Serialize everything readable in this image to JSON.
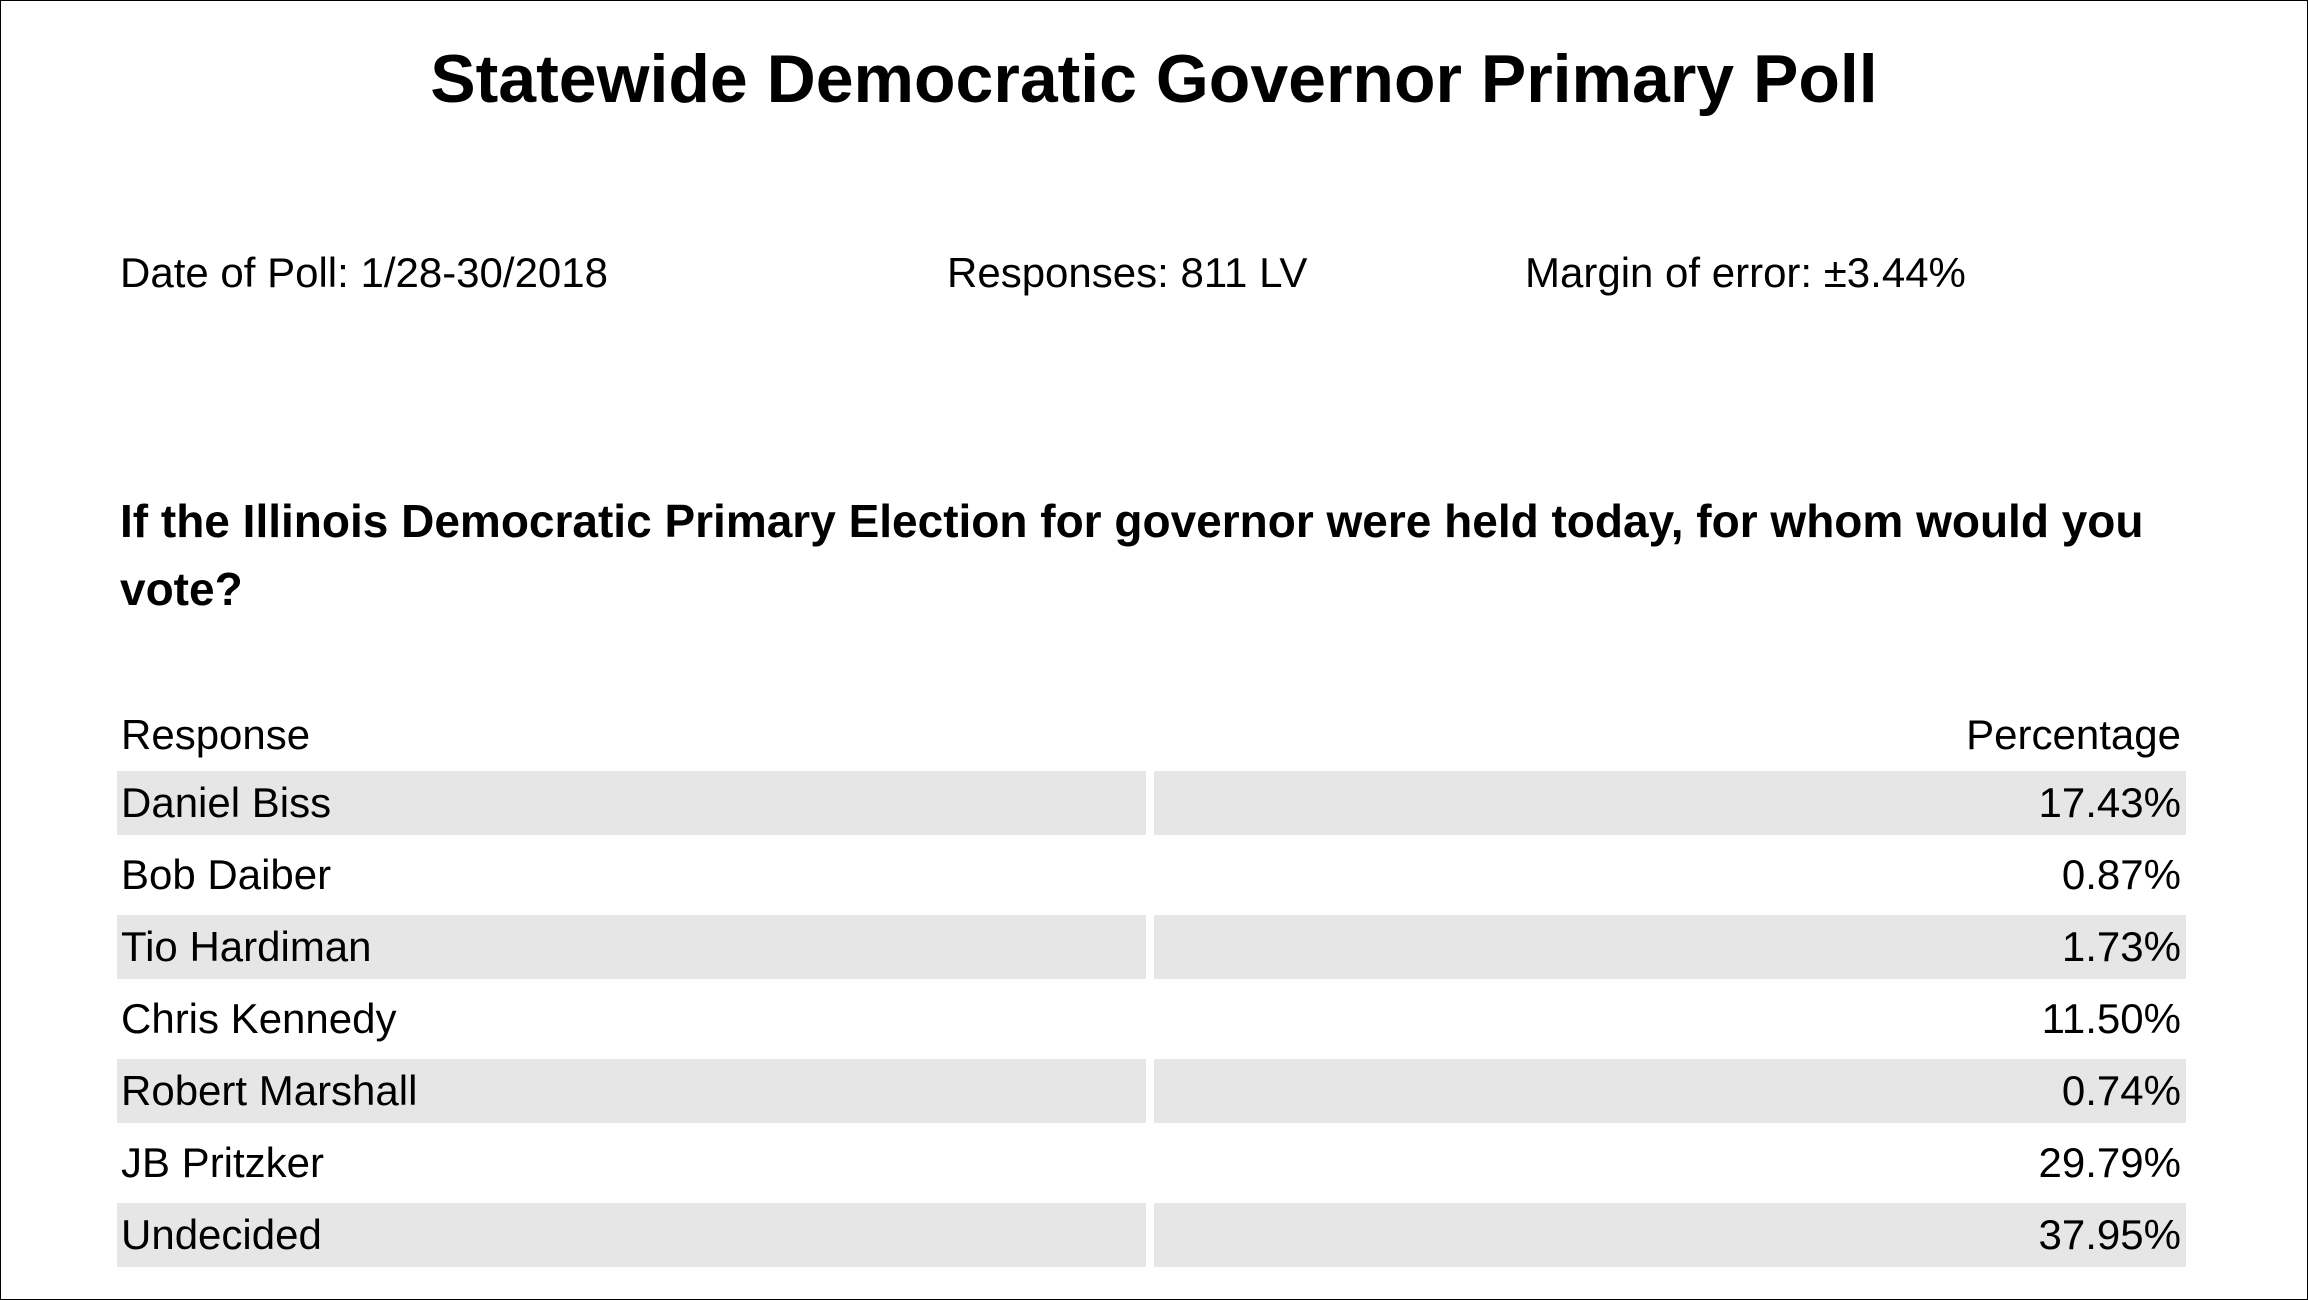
{
  "title": "Statewide Democratic Governor Primary Poll",
  "meta": {
    "date": "Date of Poll: 1/28-30/2018",
    "responses": "Responses: 811 LV",
    "margin_of_error": "Margin of error: ±3.44%"
  },
  "question": "If the Illinois Democratic Primary Election for governor were held today, for whom would you vote?",
  "table": {
    "columns": [
      "Response",
      "Percentage"
    ],
    "shaded_color": "#e6e6e6",
    "rows": [
      {
        "response": "Daniel Biss",
        "percentage": "17.43%"
      },
      {
        "response": "Bob Daiber",
        "percentage": "0.87%"
      },
      {
        "response": "Tio Hardiman",
        "percentage": "1.73%"
      },
      {
        "response": "Chris Kennedy",
        "percentage": "11.50%"
      },
      {
        "response": "Robert Marshall",
        "percentage": "0.74%"
      },
      {
        "response": "JB Pritzker",
        "percentage": "29.79%"
      },
      {
        "response": "Undecided",
        "percentage": "37.95%"
      }
    ]
  }
}
